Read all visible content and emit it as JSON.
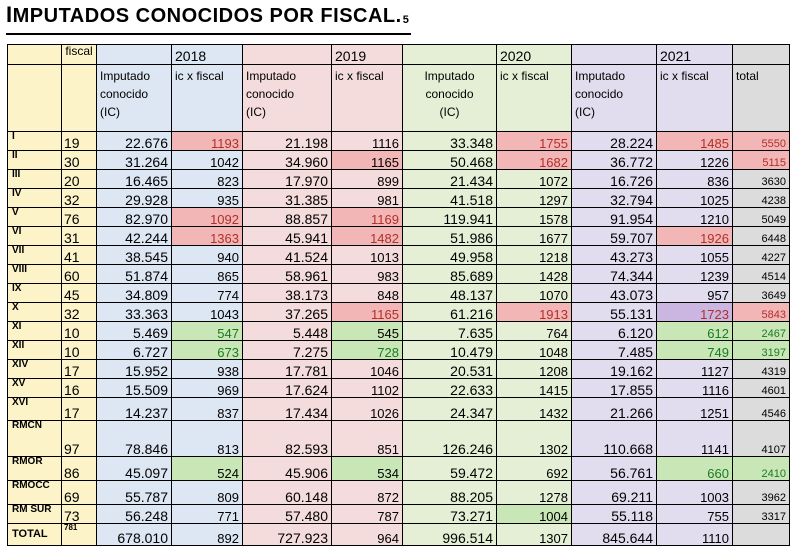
{
  "title": {
    "first_letter": "I",
    "rest": "MPUTADOS CONOCIDOS POR FISCAL.",
    "sup": "5"
  },
  "header": {
    "fiscal": "fiscal",
    "years": [
      "2018",
      "2019",
      "2020",
      "2021"
    ],
    "imputado_lines": [
      "Imputado",
      "conocido",
      "(IC)"
    ],
    "ic_x_fiscal": "ic x fiscal",
    "total": "total"
  },
  "colors": {
    "blue": "#dde6f3",
    "pink": "#f5dcdc",
    "green": "#e5efd6",
    "violet": "#e2dcef",
    "gray": "#dcdcdc",
    "yellow": "#fcf3c8",
    "hl_red": "#f2b6b6",
    "hl_green": "#c9e7b6",
    "hl_violet": "#cbb6e2"
  },
  "rows": [
    {
      "label": "I",
      "fiscal": "19",
      "c": [
        "22.676",
        "1193",
        "21.198",
        "1116",
        "33.348",
        "1755",
        "28.224",
        "1485",
        "5550"
      ]
    },
    {
      "label": "II",
      "fiscal": "30",
      "c": [
        "31.264",
        "1042",
        "34.960",
        "1165",
        "50.468",
        "1682",
        "36.772",
        "1226",
        "5115"
      ]
    },
    {
      "label": "III",
      "fiscal": "20",
      "c": [
        "16.465",
        "823",
        "17.970",
        "899",
        "21.434",
        "1072",
        "16.726",
        "836",
        "3630"
      ]
    },
    {
      "label": "IV",
      "fiscal": "32",
      "c": [
        "29.928",
        "935",
        "31.385",
        "981",
        "41.518",
        "1297",
        "32.794",
        "1025",
        "4238"
      ]
    },
    {
      "label": "V",
      "fiscal": "76",
      "c": [
        "82.970",
        "1092",
        "88.857",
        "1169",
        "119.941",
        "1578",
        "91.954",
        "1210",
        "5049"
      ]
    },
    {
      "label": "VI",
      "fiscal": "31",
      "c": [
        "42.244",
        "1363",
        "45.941",
        "1482",
        "51.986",
        "1677",
        "59.707",
        "1926",
        "6448"
      ]
    },
    {
      "label": "VII",
      "fiscal": "41",
      "c": [
        "38.545",
        "940",
        "41.524",
        "1013",
        "49.958",
        "1218",
        "43.273",
        "1055",
        "4227"
      ]
    },
    {
      "label": "VIII",
      "fiscal": "60",
      "c": [
        "51.874",
        "865",
        "58.961",
        "983",
        "85.689",
        "1428",
        "74.344",
        "1239",
        "4514"
      ]
    },
    {
      "label": "IX",
      "fiscal": "45",
      "c": [
        "34.809",
        "774",
        "38.173",
        "848",
        "48.137",
        "1070",
        "43.073",
        "957",
        "3649"
      ]
    },
    {
      "label": "X",
      "fiscal": "32",
      "c": [
        "33.363",
        "1043",
        "37.265",
        "1165",
        "61.216",
        "1913",
        "55.131",
        "1723",
        "5843"
      ]
    },
    {
      "label": "XI",
      "fiscal": "10",
      "c": [
        "5.469",
        "547",
        "5.448",
        "545",
        "7.635",
        "764",
        "6.120",
        "612",
        "2467"
      ]
    },
    {
      "label": "XII",
      "fiscal": "10",
      "c": [
        "6.727",
        "673",
        "7.275",
        "728",
        "10.479",
        "1048",
        "7.485",
        "749",
        "3197"
      ]
    },
    {
      "label": "XIV",
      "fiscal": "17",
      "c": [
        "15.952",
        "938",
        "17.781",
        "1046",
        "20.531",
        "1208",
        "19.162",
        "1127",
        "4319"
      ]
    },
    {
      "label": "XV",
      "fiscal": "16",
      "c": [
        "15.509",
        "969",
        "17.624",
        "1102",
        "22.633",
        "1415",
        "17.855",
        "1116",
        "4601"
      ]
    },
    {
      "label": "XVI",
      "fiscal": "17",
      "c": [
        "14.237",
        "837",
        "17.434",
        "1026",
        "24.347",
        "1432",
        "21.266",
        "1251",
        "4546"
      ]
    },
    {
      "label": "RMCN",
      "fiscal": "97",
      "c": [
        "78.846",
        "813",
        "82.593",
        "851",
        "126.246",
        "1302",
        "110.668",
        "1141",
        "4107"
      ]
    },
    {
      "label": "RMOR",
      "fiscal": "86",
      "c": [
        "45.097",
        "524",
        "45.906",
        "534",
        "59.472",
        "692",
        "56.761",
        "660",
        "2410"
      ]
    },
    {
      "label": "RMOCC",
      "fiscal": "69",
      "c": [
        "55.787",
        "809",
        "60.148",
        "872",
        "88.205",
        "1278",
        "69.211",
        "1003",
        "3962"
      ]
    },
    {
      "label": "RM SUR",
      "fiscal": "73",
      "c": [
        "56.248",
        "771",
        "57.480",
        "787",
        "73.271",
        "1004",
        "55.118",
        "755",
        "3317"
      ]
    },
    {
      "label": "TOTAL",
      "fiscal": "781",
      "c": [
        "678.010",
        "892",
        "727.923",
        "964",
        "996.514",
        "1307",
        "845.644",
        "1110",
        ""
      ]
    }
  ]
}
